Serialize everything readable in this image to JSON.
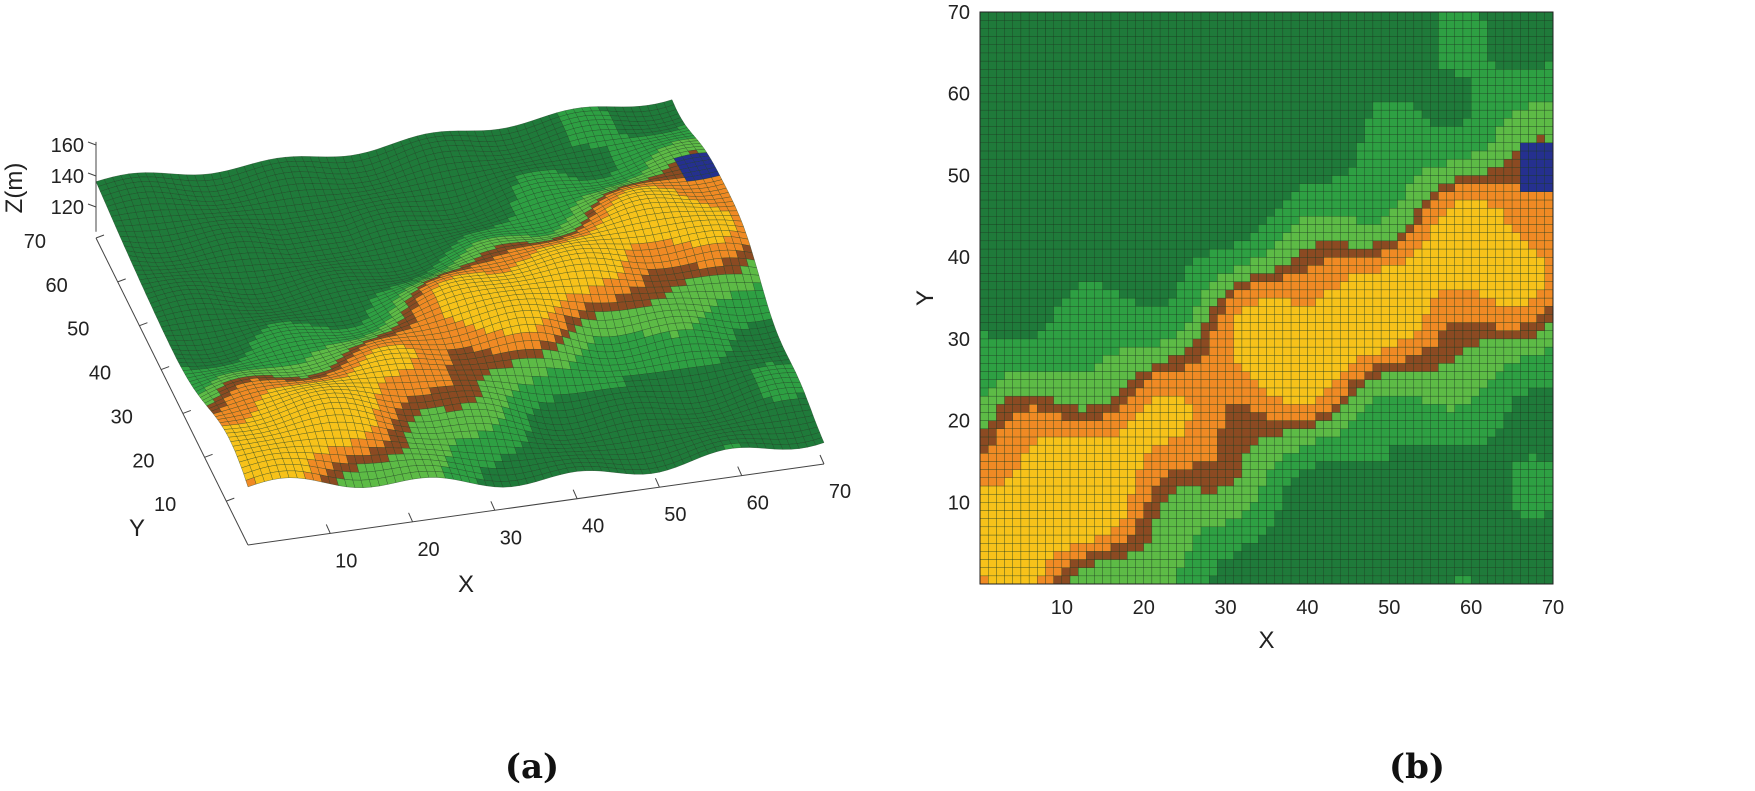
{
  "figure": {
    "panel_labels": [
      "(a)",
      "(b)"
    ]
  },
  "colors": {
    "dark_green": "#1f7a3a",
    "mid_green": "#2ea043",
    "light_green": "#5dbb46",
    "orange": "#f08a24",
    "yellow": "#f7c21a",
    "brown": "#8b4a22",
    "blue": "#25308f",
    "gridline": "#1b3a1f"
  },
  "chart_data": [
    {
      "type": "surface",
      "panel": "(a)",
      "xlabel": "X",
      "ylabel": "Y",
      "zlabel": "Z(m)",
      "xlim": [
        0,
        70
      ],
      "ylim": [
        0,
        70
      ],
      "zlim": [
        100,
        160
      ],
      "xticks": [
        "10",
        "20",
        "30",
        "40",
        "50",
        "60",
        "70"
      ],
      "yticks": [
        "10",
        "20",
        "30",
        "40",
        "50",
        "60",
        "70"
      ],
      "zticks": [
        "120",
        "140",
        "160"
      ],
      "grid": [
        70,
        70
      ]
    },
    {
      "type": "heatmap",
      "panel": "(b)",
      "xlabel": "X",
      "ylabel": "Y",
      "xlim": [
        0,
        70
      ],
      "ylim": [
        0,
        70
      ],
      "xticks": [
        "10",
        "20",
        "30",
        "40",
        "50",
        "60",
        "70"
      ],
      "yticks": [
        "10",
        "20",
        "30",
        "40",
        "50",
        "60",
        "70"
      ],
      "grid": [
        70,
        70
      ]
    }
  ]
}
